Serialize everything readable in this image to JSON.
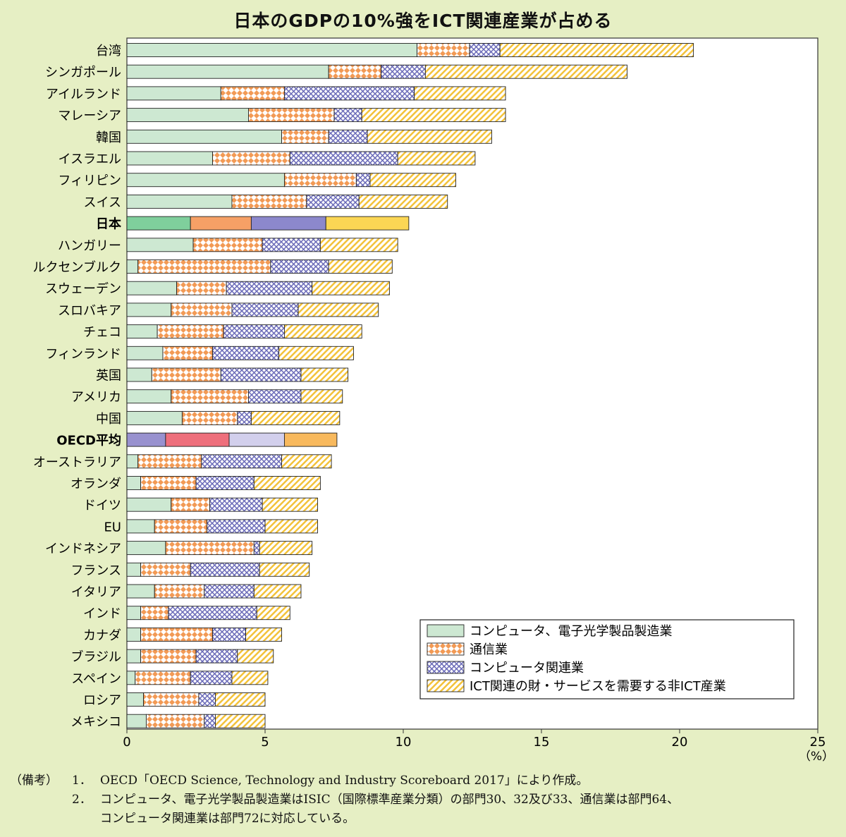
{
  "title": "日本のGDPの10%強をICT関連産業が占める",
  "chart_data": {
    "type": "bar",
    "orientation": "horizontal",
    "stacked": true,
    "title": "日本のGDPの10%強をICT関連産業が占める",
    "xlim": [
      0,
      25
    ],
    "xticks": [
      0,
      5,
      10,
      15,
      20,
      25
    ],
    "x_unit": "（%）",
    "categories": [
      "台湾",
      "シンガポール",
      "アイルランド",
      "マレーシア",
      "韓国",
      "イスラエル",
      "フィリピン",
      "スイス",
      "日本",
      "ハンガリー",
      "ルクセンブルク",
      "スウェーデン",
      "スロバキア",
      "チェコ",
      "フィンランド",
      "英国",
      "アメリカ",
      "中国",
      "OECD平均",
      "オーストラリア",
      "オランダ",
      "ドイツ",
      "EU",
      "インドネシア",
      "フランス",
      "イタリア",
      "インド",
      "カナダ",
      "ブラジル",
      "スペイン",
      "ロシア",
      "メキシコ"
    ],
    "highlighted": [
      "日本",
      "OECD平均"
    ],
    "series": [
      {
        "name": "コンピュータ、電子光学製品製造業",
        "color": "#cde8d2",
        "values": [
          10.5,
          7.3,
          3.4,
          4.4,
          5.6,
          3.1,
          5.7,
          3.8,
          2.3,
          2.4,
          0.4,
          1.8,
          1.6,
          1.1,
          1.3,
          0.9,
          1.6,
          2.0,
          1.4,
          0.4,
          0.5,
          1.6,
          1.0,
          1.4,
          0.5,
          1.0,
          0.5,
          0.5,
          0.5,
          0.3,
          0.6,
          0.7
        ]
      },
      {
        "name": "通信業",
        "color": "#f4a96a",
        "values": [
          1.9,
          1.9,
          2.3,
          3.1,
          1.7,
          2.8,
          2.6,
          2.7,
          2.2,
          2.5,
          4.8,
          1.8,
          2.2,
          2.4,
          1.8,
          2.5,
          2.8,
          2.0,
          2.3,
          2.3,
          2.0,
          1.4,
          1.9,
          3.2,
          1.8,
          1.8,
          1.0,
          2.6,
          2.0,
          2.0,
          2.0,
          2.1
        ]
      },
      {
        "name": "コンピュータ関連業",
        "color": "#8f8fd0",
        "values": [
          1.1,
          1.6,
          4.7,
          1.0,
          1.4,
          3.9,
          0.5,
          1.9,
          2.7,
          2.1,
          2.1,
          3.1,
          2.4,
          2.2,
          2.4,
          2.9,
          1.9,
          0.5,
          2.0,
          2.9,
          2.1,
          1.9,
          2.1,
          0.2,
          2.5,
          1.8,
          3.2,
          1.2,
          1.5,
          1.5,
          0.6,
          0.4
        ]
      },
      {
        "name": "ICT関連の財・サービスを需要する非ICT産業",
        "color": "#ffd84f",
        "values": [
          7.0,
          7.3,
          3.3,
          5.2,
          4.5,
          2.8,
          3.1,
          3.2,
          3.0,
          2.8,
          2.3,
          2.8,
          2.9,
          2.8,
          2.7,
          1.7,
          1.5,
          3.2,
          1.9,
          1.8,
          2.4,
          2.0,
          1.9,
          1.9,
          1.8,
          1.7,
          1.2,
          1.3,
          1.3,
          1.3,
          1.8,
          1.8
        ]
      }
    ],
    "legend_position": "bottom-right"
  },
  "notes": {
    "prefix": "（備考）",
    "items": [
      {
        "num": "1．",
        "text": "OECD「OECD Science, Technology and Industry Scoreboard 2017」により作成。"
      },
      {
        "num": "2．",
        "text": "コンピュータ、電子光学製品製造業はISIC（国際標準産業分類）の部門30、32及び33、通信業は部門64、"
      }
    ],
    "continuation": "コンピュータ関連業は部門72に対応している。"
  }
}
